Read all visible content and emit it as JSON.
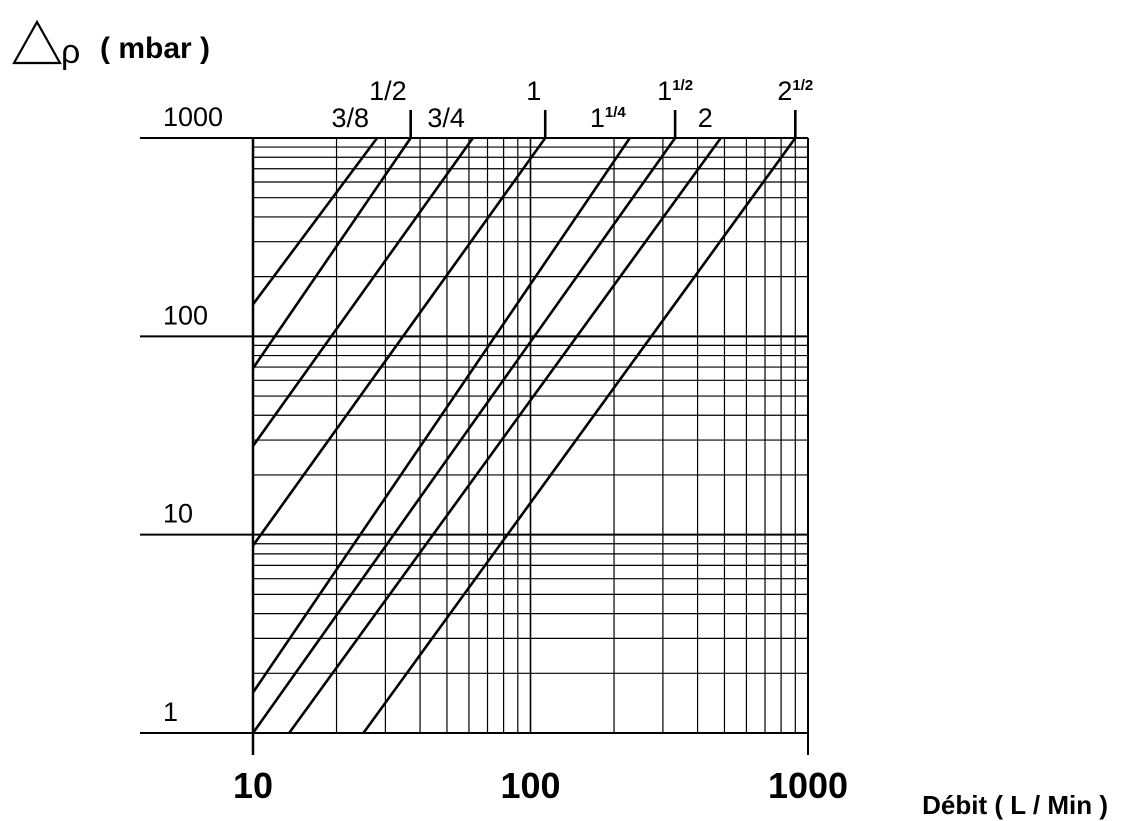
{
  "chart_data": {
    "type": "line",
    "title": "",
    "ylabel": {
      "symbol": "Δρ",
      "unit": "( mbar )"
    },
    "xlabel": "Débit ( L / Min )",
    "x_scale": "log",
    "y_scale": "log",
    "xlim": [
      10,
      1000
    ],
    "ylim": [
      1,
      1000
    ],
    "x_ticks": [
      {
        "value": 10,
        "label": "10"
      },
      {
        "value": 100,
        "label": "100"
      },
      {
        "value": 1000,
        "label": "1000"
      }
    ],
    "y_ticks": [
      {
        "value": 1,
        "label": "1"
      },
      {
        "value": 10,
        "label": "10"
      },
      {
        "value": 100,
        "label": "100"
      },
      {
        "value": 1000,
        "label": "1000"
      }
    ],
    "grid": true,
    "legend": "none",
    "series": [
      {
        "name": "3/8",
        "label_main": "3/8",
        "label_sup": "",
        "marker": false,
        "points": [
          [
            10,
            145
          ],
          [
            28,
            1000
          ]
        ]
      },
      {
        "name": "1/2",
        "label_main": "1/2",
        "label_sup": "",
        "marker": true,
        "points": [
          [
            10,
            69
          ],
          [
            37,
            1000
          ]
        ]
      },
      {
        "name": "3/4",
        "label_main": "3/4",
        "label_sup": "",
        "marker": false,
        "points": [
          [
            10,
            28
          ],
          [
            62,
            1000
          ]
        ]
      },
      {
        "name": "1",
        "label_main": "1",
        "label_sup": "",
        "marker": true,
        "points": [
          [
            10,
            8.8
          ],
          [
            113,
            1000
          ]
        ]
      },
      {
        "name": "1 1/4",
        "label_main": "1",
        "label_sup": "1/4",
        "marker": false,
        "points": [
          [
            10,
            1.6
          ],
          [
            228,
            1000
          ]
        ]
      },
      {
        "name": "1 1/2",
        "label_main": "1",
        "label_sup": "1/2",
        "marker": true,
        "points": [
          [
            10,
            1
          ],
          [
            332,
            1000
          ]
        ]
      },
      {
        "name": "2",
        "label_main": "2",
        "label_sup": "",
        "marker": false,
        "points": [
          [
            13.5,
            1
          ],
          [
            485,
            1000
          ]
        ]
      },
      {
        "name": "2 1/2",
        "label_main": "2",
        "label_sup": "1/2",
        "marker": true,
        "points": [
          [
            25,
            1
          ],
          [
            900,
            1000
          ]
        ]
      }
    ]
  }
}
